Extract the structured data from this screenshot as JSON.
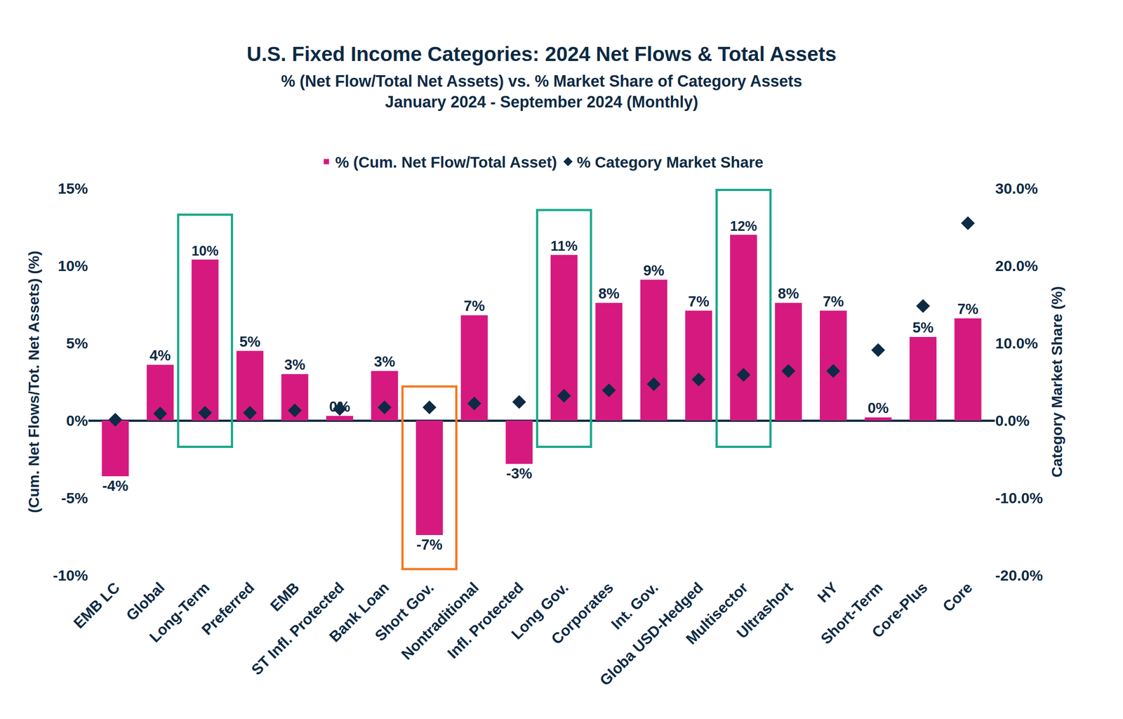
{
  "chart_data": {
    "type": "bar",
    "title": "U.S. Fixed Income Categories: 2024 Net Flows & Total Assets",
    "subtitle": [
      "% (Net Flow/Total Net Assets) vs. % Market Share of Category Assets",
      "January 2024 - September 2024 (Monthly)"
    ],
    "y_label": "(Cum. Net Flows/Tot. Net Assets) (%)",
    "y2_label": "Category Market Share (%)",
    "categories": [
      "EMB LC",
      "Global",
      "Long-Term",
      "Preferred",
      "EMB",
      "ST Infl. Protected",
      "Bank Loan",
      "Short Gov.",
      "Nontraditional",
      "Infl. Protected",
      "Long Gov.",
      "Corporates",
      "Int. Gov.",
      "Globa USD-Hedged",
      "Multisector",
      "Ultrashort",
      "HY",
      "Short-Term",
      "Core-Plus",
      "Core"
    ],
    "series": [
      {
        "name": "% (Cum. Net Flow/Total Asset)",
        "type": "bar",
        "color": "#d6197f",
        "values": [
          -3.6,
          3.6,
          10.4,
          4.5,
          3.0,
          0.3,
          3.2,
          -7.4,
          6.8,
          -2.8,
          10.7,
          7.6,
          9.1,
          7.1,
          12.0,
          7.6,
          7.1,
          0.2,
          5.4,
          6.6
        ],
        "value_labels": [
          "-4%",
          "4%",
          "10%",
          "5%",
          "3%",
          "0%",
          "3%",
          "-7%",
          "7%",
          "-3%",
          "11%",
          "8%",
          "9%",
          "7%",
          "12%",
          "8%",
          "7%",
          "0%",
          "5%",
          "7%"
        ]
      },
      {
        "name": "% Category Market Share",
        "type": "scatter",
        "marker": "diamond",
        "axis": "y2",
        "color": "#0d2b45",
        "values": [
          0.1,
          0.9,
          1.0,
          1.0,
          1.3,
          1.5,
          1.7,
          1.7,
          2.2,
          2.4,
          3.2,
          3.9,
          4.7,
          5.3,
          5.9,
          6.4,
          6.4,
          9.1,
          14.8,
          25.5
        ]
      }
    ],
    "highlights": [
      {
        "category": "Long-Term",
        "color": "#1aa88a"
      },
      {
        "category": "Short Gov.",
        "color": "#f5781f"
      },
      {
        "category": "Long Gov.",
        "color": "#1aa88a"
      },
      {
        "category": "Multisector",
        "color": "#1aa88a"
      }
    ],
    "ylim": [
      -10,
      15
    ],
    "yticks": [
      {
        "value": -10,
        "label": "-10%"
      },
      {
        "value": -5,
        "label": "-5%"
      },
      {
        "value": 0,
        "label": "0%"
      },
      {
        "value": 5,
        "label": "5%"
      },
      {
        "value": 10,
        "label": "10%"
      },
      {
        "value": 15,
        "label": "15%"
      }
    ],
    "y2lim": [
      -20,
      30
    ],
    "y2ticks": [
      {
        "value": -20,
        "label": "-20.0%"
      },
      {
        "value": -10,
        "label": "-10.0%"
      },
      {
        "value": 0,
        "label": "0.0%"
      },
      {
        "value": 10,
        "label": "10.0%"
      },
      {
        "value": 20,
        "label": "20.0%"
      },
      {
        "value": 30,
        "label": "30.0%"
      }
    ],
    "grid": false,
    "data_labels": true,
    "legend": "top"
  }
}
